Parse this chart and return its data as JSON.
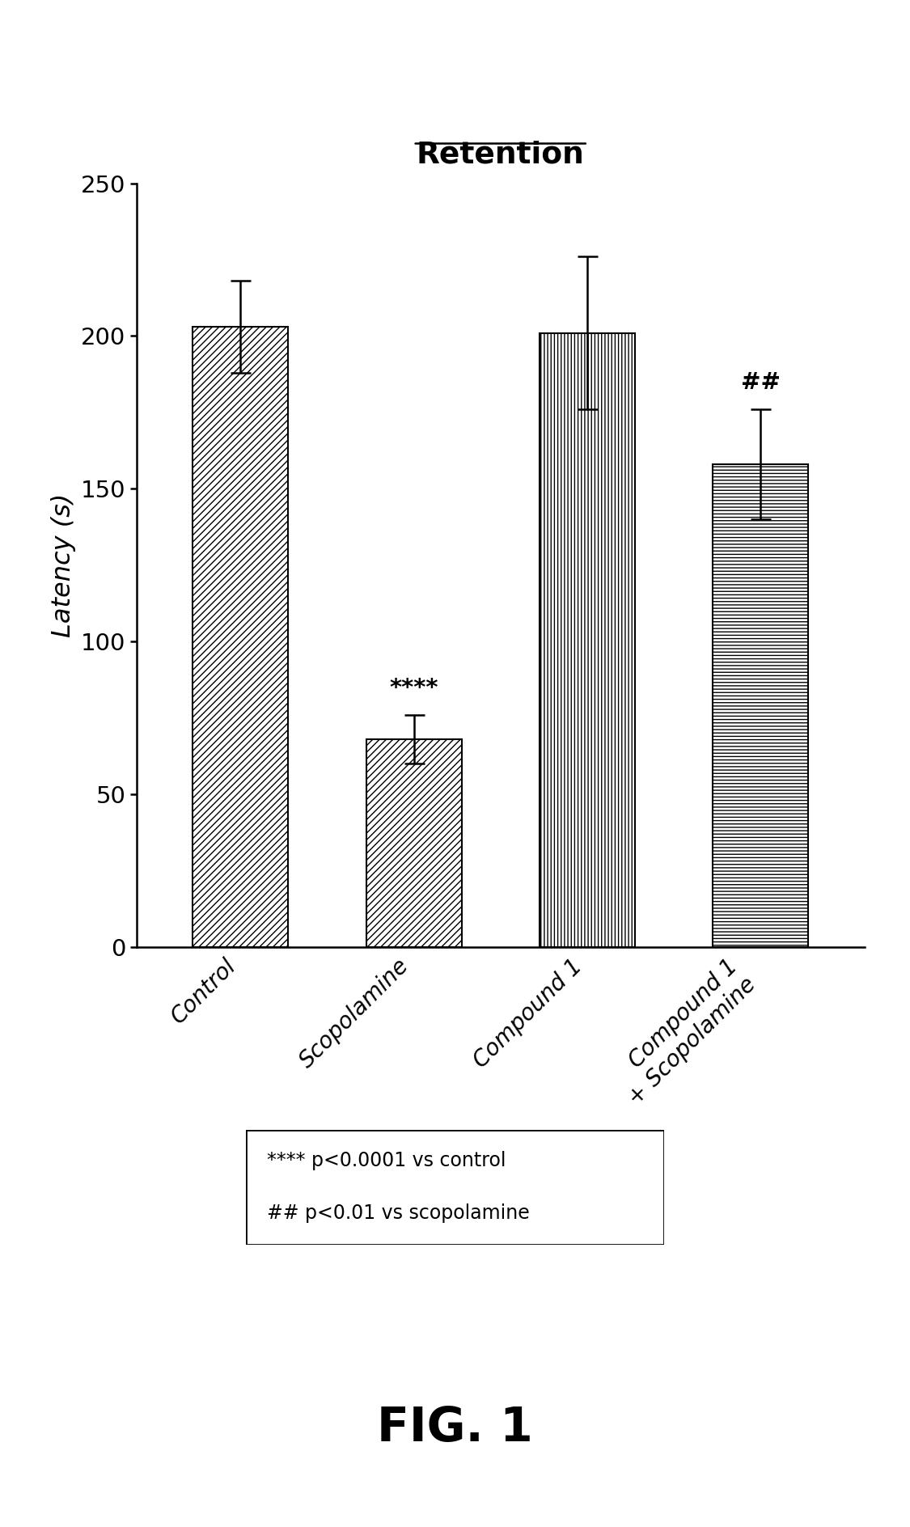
{
  "title": "Retention",
  "ylabel": "Latency (s)",
  "categories": [
    "Control",
    "Scopolamine",
    "Compound 1",
    "Compound 1\n+ Scopolamine"
  ],
  "values": [
    203,
    68,
    201,
    158
  ],
  "errors": [
    15,
    8,
    25,
    18
  ],
  "ylim": [
    0,
    250
  ],
  "yticks": [
    0,
    50,
    100,
    150,
    200,
    250
  ],
  "annotations": [
    "",
    "****",
    "",
    "##"
  ],
  "hatch_patterns": [
    "////",
    "////",
    "||||",
    "----"
  ],
  "background_color": "#ffffff",
  "bar_color": "#ffffff",
  "edge_color": "#000000",
  "legend_text_line1": "**** p<0.0001 vs control",
  "legend_text_line2": "## p<0.01 vs scopolamine",
  "fig_label": "FIG. 1",
  "bar_width": 0.55
}
